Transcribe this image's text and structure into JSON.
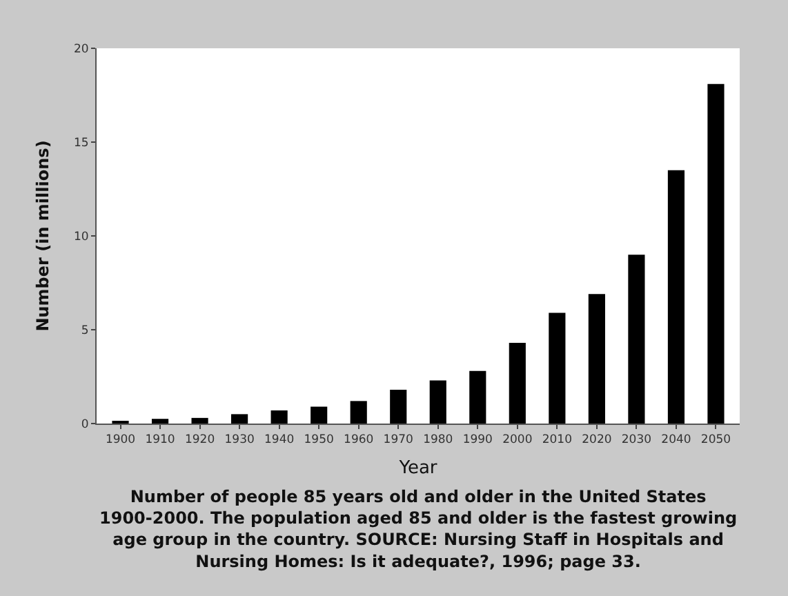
{
  "chart_data": {
    "type": "bar",
    "xlabel": "Year",
    "ylabel": "Number (in millions)",
    "categories": [
      "1900",
      "1910",
      "1920",
      "1930",
      "1940",
      "1950",
      "1960",
      "1970",
      "1980",
      "1990",
      "2000",
      "2010",
      "2020",
      "2030",
      "2040",
      "2050"
    ],
    "values": [
      0.1,
      0.25,
      0.3,
      0.5,
      0.7,
      0.9,
      1.2,
      1.8,
      2.3,
      2.8,
      4.3,
      5.9,
      6.9,
      9.0,
      13.5,
      18.1
    ],
    "color": "#000000",
    "ylim": [
      0,
      20
    ],
    "yticks": [
      0,
      5,
      10,
      15,
      20
    ],
    "annotations": [
      "Number of people 85 years old and older in the United States 1900-2000. The population aged 85 and older is the fastest growing age group in the country. SOURCE: Nursing Staff in Hospitals and Nursing Homes: Is it adequate?, 1996; page 33."
    ]
  }
}
